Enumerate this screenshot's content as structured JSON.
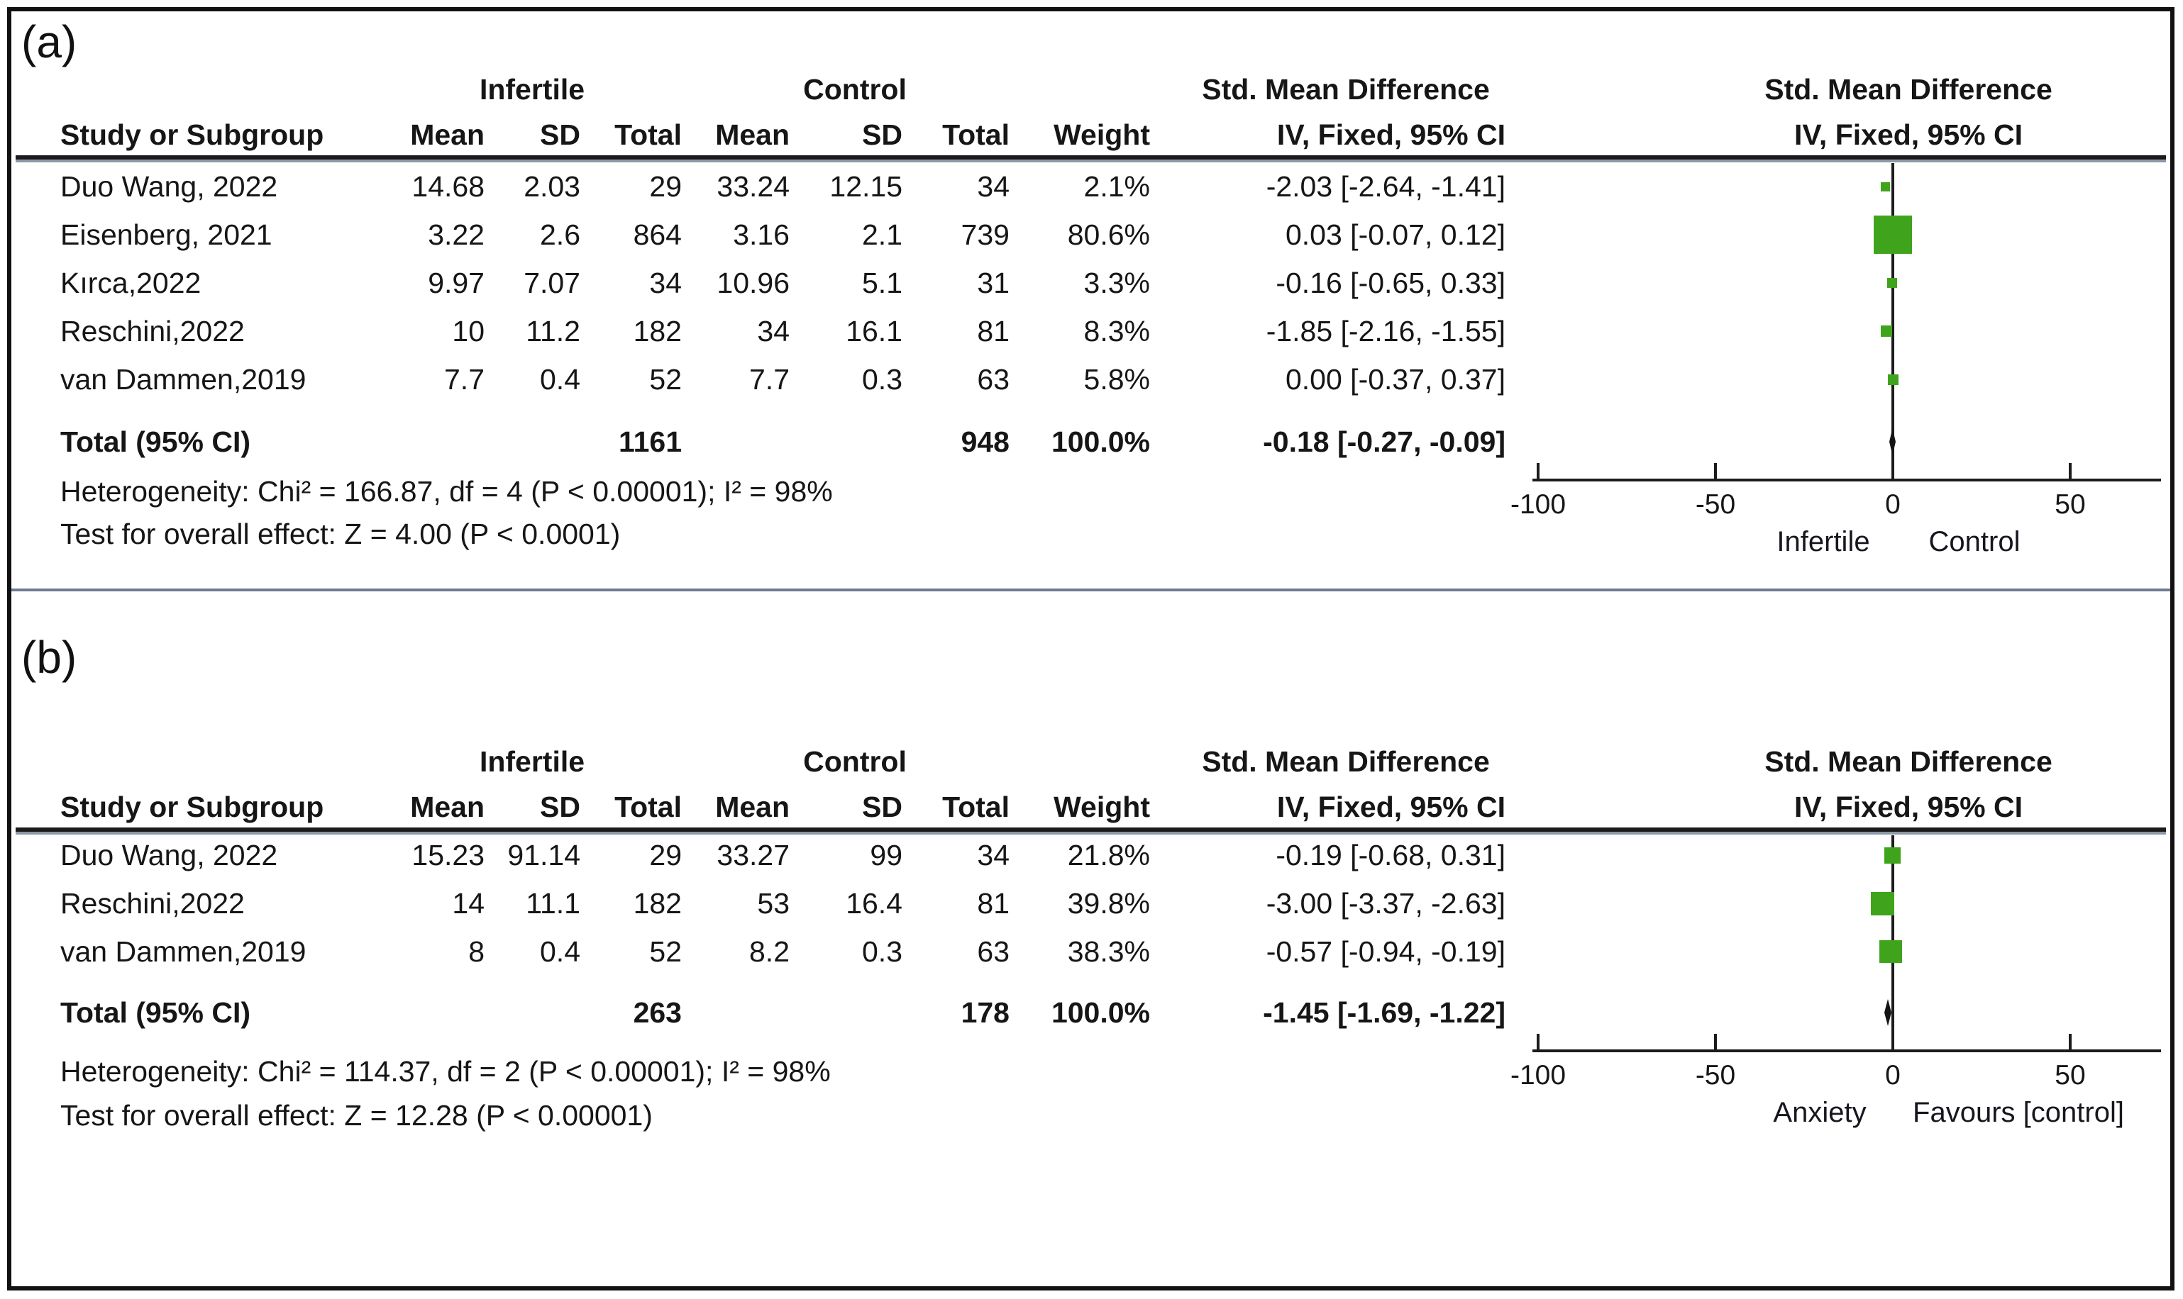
{
  "figure": {
    "panel_a_label": "(a)",
    "panel_b_label": "(b)",
    "colors": {
      "square_green": "#3FA41B",
      "diamond_black": "#141414",
      "divider_blue_gray": "#6e7b90"
    }
  },
  "table_headers": {
    "group_infertile": "Infertile",
    "group_control": "Control",
    "group_smd": "Std. Mean Difference",
    "study": "Study or Subgroup",
    "mean": "Mean",
    "sd": "SD",
    "total": "Total",
    "weight": "Weight",
    "iv_fixed": "IV, Fixed, 95% CI"
  },
  "panel_a": {
    "studies": [
      {
        "name": "Duo Wang, 2022",
        "mean1": "14.68",
        "sd1": "2.03",
        "total1": "29",
        "mean2": "33.24",
        "sd2": "12.15",
        "total2": "34",
        "weight": "2.1%",
        "ci": "-2.03 [-2.64, -1.41]"
      },
      {
        "name": "Eisenberg, 2021",
        "mean1": "3.22",
        "sd1": "2.6",
        "total1": "864",
        "mean2": "3.16",
        "sd2": "2.1",
        "total2": "739",
        "weight": "80.6%",
        "ci": "0.03 [-0.07, 0.12]"
      },
      {
        "name": "Kırca,2022",
        "mean1": "9.97",
        "sd1": "7.07",
        "total1": "34",
        "mean2": "10.96",
        "sd2": "5.1",
        "total2": "31",
        "weight": "3.3%",
        "ci": "-0.16 [-0.65, 0.33]"
      },
      {
        "name": "Reschini,2022",
        "mean1": "10",
        "sd1": "11.2",
        "total1": "182",
        "mean2": "34",
        "sd2": "16.1",
        "total2": "81",
        "weight": "8.3%",
        "ci": "-1.85 [-2.16, -1.55]"
      },
      {
        "name": "van Dammen,2019",
        "mean1": "7.7",
        "sd1": "0.4",
        "total1": "52",
        "mean2": "7.7",
        "sd2": "0.3",
        "total2": "63",
        "weight": "5.8%",
        "ci": "0.00 [-0.37, 0.37]"
      }
    ],
    "total_row": {
      "label": "Total (95% CI)",
      "total1": "1161",
      "total2": "948",
      "weight": "100.0%",
      "ci": "-0.18 [-0.27, -0.09]"
    },
    "heterogeneity": "Heterogeneity: Chi² = 166.87, df = 4 (P < 0.00001); I² = 98%",
    "overall_effect": "Test for overall effect: Z = 4.00 (P < 0.0001)",
    "axis": {
      "ticks": [
        "-100",
        "-50",
        "0",
        "50"
      ],
      "left_label": "Infertile",
      "right_label": "Control"
    }
  },
  "panel_b": {
    "studies": [
      {
        "name": "Duo Wang, 2022",
        "mean1": "15.23",
        "sd1": "91.14",
        "total1": "29",
        "mean2": "33.27",
        "sd2": "99",
        "total2": "34",
        "weight": "21.8%",
        "ci": "-0.19 [-0.68, 0.31]"
      },
      {
        "name": "Reschini,2022",
        "mean1": "14",
        "sd1": "11.1",
        "total1": "182",
        "mean2": "53",
        "sd2": "16.4",
        "total2": "81",
        "weight": "39.8%",
        "ci": "-3.00 [-3.37, -2.63]"
      },
      {
        "name": "van Dammen,2019",
        "mean1": "8",
        "sd1": "0.4",
        "total1": "52",
        "mean2": "8.2",
        "sd2": "0.3",
        "total2": "63",
        "weight": "38.3%",
        "ci": "-0.57 [-0.94, -0.19]"
      }
    ],
    "total_row": {
      "label": "Total (95% CI)",
      "total1": "263",
      "total2": "178",
      "weight": "100.0%",
      "ci": "-1.45 [-1.69, -1.22]"
    },
    "heterogeneity": "Heterogeneity: Chi² = 114.37, df = 2 (P < 0.00001); I² = 98%",
    "overall_effect": "Test for overall effect: Z = 12.28 (P < 0.00001)",
    "axis": {
      "ticks": [
        "-100",
        "-50",
        "0",
        "50"
      ],
      "left_label": "Anxiety",
      "right_label": "Favours [control]"
    }
  },
  "chart_data": [
    {
      "type": "scatter",
      "title": "Forest plot (a): Std. Mean Difference, IV, Fixed, 95% CI",
      "x_axis": {
        "ticks": [
          -100,
          -50,
          0,
          50
        ],
        "range": [
          -100,
          73
        ],
        "left_label": "Infertile",
        "right_label": "Control"
      },
      "points": [
        {
          "study": "Duo Wang, 2022",
          "smd": -2.03,
          "ci_low": -2.64,
          "ci_high": -1.41,
          "weight_pct": 2.1
        },
        {
          "study": "Eisenberg, 2021",
          "smd": 0.03,
          "ci_low": -0.07,
          "ci_high": 0.12,
          "weight_pct": 80.6
        },
        {
          "study": "Kırca,2022",
          "smd": -0.16,
          "ci_low": -0.65,
          "ci_high": 0.33,
          "weight_pct": 3.3
        },
        {
          "study": "Reschini,2022",
          "smd": -1.85,
          "ci_low": -2.16,
          "ci_high": -1.55,
          "weight_pct": 8.3
        },
        {
          "study": "van Dammen,2019",
          "smd": 0.0,
          "ci_low": -0.37,
          "ci_high": 0.37,
          "weight_pct": 5.8
        }
      ],
      "total": {
        "smd": -0.18,
        "ci_low": -0.27,
        "ci_high": -0.09
      }
    },
    {
      "type": "scatter",
      "title": "Forest plot (b): Std. Mean Difference, IV, Fixed, 95% CI",
      "x_axis": {
        "ticks": [
          -100,
          -50,
          0,
          50
        ],
        "range": [
          -100,
          73
        ],
        "left_label": "Anxiety",
        "right_label": "Favours [control]"
      },
      "points": [
        {
          "study": "Duo Wang, 2022",
          "smd": -0.19,
          "ci_low": -0.68,
          "ci_high": 0.31,
          "weight_pct": 21.8
        },
        {
          "study": "Reschini,2022",
          "smd": -3.0,
          "ci_low": -3.37,
          "ci_high": -2.63,
          "weight_pct": 39.8
        },
        {
          "study": "van Dammen,2019",
          "smd": -0.57,
          "ci_low": -0.94,
          "ci_high": -0.19,
          "weight_pct": 38.3
        }
      ],
      "total": {
        "smd": -1.45,
        "ci_low": -1.69,
        "ci_high": -1.22
      }
    }
  ]
}
